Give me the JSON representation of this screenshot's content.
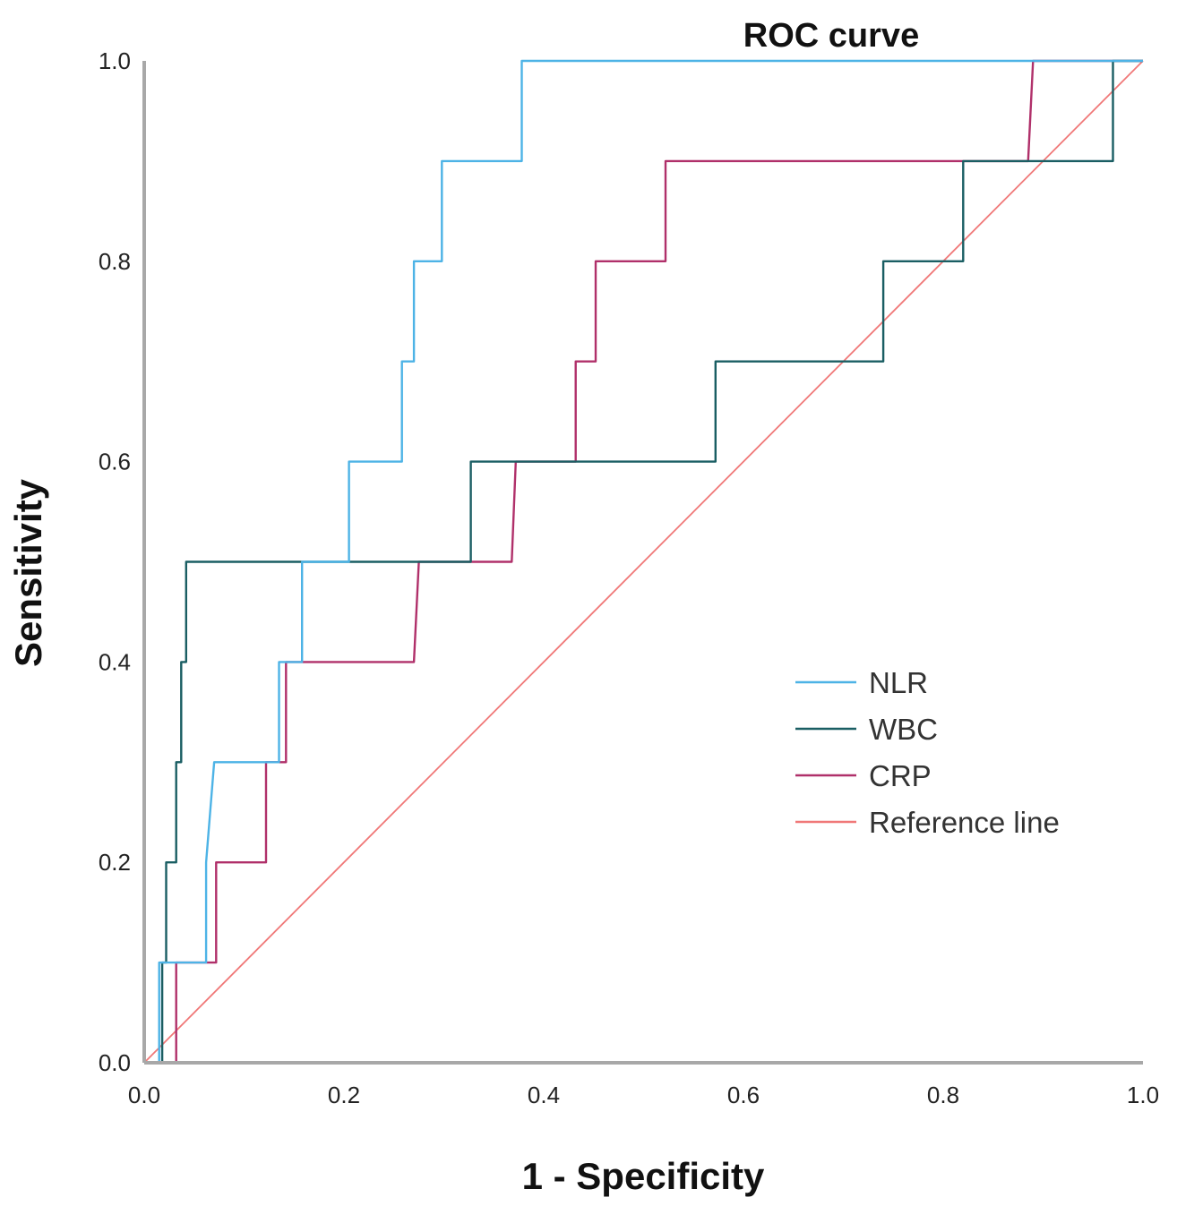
{
  "chart_data": {
    "type": "line",
    "title": "ROC curve",
    "xlabel": "1 - Specificity",
    "ylabel": "Sensitivity",
    "xlim": [
      0,
      1
    ],
    "ylim": [
      0,
      1
    ],
    "xticks": [
      "0.0",
      "0.2",
      "0.4",
      "0.6",
      "0.8",
      "1.0"
    ],
    "yticks": [
      "0.0",
      "0.2",
      "0.4",
      "0.6",
      "0.8",
      "1.0"
    ],
    "legend_position": "right-middle",
    "series": [
      {
        "name": "NLR",
        "color": "#4db3e6",
        "points": [
          [
            0,
            0
          ],
          [
            0.015,
            0
          ],
          [
            0.015,
            0.1
          ],
          [
            0.062,
            0.1
          ],
          [
            0.062,
            0.2
          ],
          [
            0.07,
            0.3
          ],
          [
            0.135,
            0.3
          ],
          [
            0.135,
            0.4
          ],
          [
            0.158,
            0.4
          ],
          [
            0.158,
            0.5
          ],
          [
            0.205,
            0.5
          ],
          [
            0.205,
            0.6
          ],
          [
            0.258,
            0.6
          ],
          [
            0.258,
            0.7
          ],
          [
            0.27,
            0.7
          ],
          [
            0.27,
            0.8
          ],
          [
            0.298,
            0.8
          ],
          [
            0.298,
            0.9
          ],
          [
            0.378,
            0.9
          ],
          [
            0.378,
            1.0
          ],
          [
            1.0,
            1.0
          ]
        ]
      },
      {
        "name": "WBC",
        "color": "#1a5e63",
        "points": [
          [
            0,
            0
          ],
          [
            0.018,
            0
          ],
          [
            0.018,
            0.1
          ],
          [
            0.022,
            0.1
          ],
          [
            0.022,
            0.2
          ],
          [
            0.032,
            0.2
          ],
          [
            0.032,
            0.3
          ],
          [
            0.037,
            0.3
          ],
          [
            0.037,
            0.4
          ],
          [
            0.042,
            0.4
          ],
          [
            0.042,
            0.5
          ],
          [
            0.327,
            0.5
          ],
          [
            0.327,
            0.6
          ],
          [
            0.572,
            0.6
          ],
          [
            0.572,
            0.7
          ],
          [
            0.74,
            0.7
          ],
          [
            0.74,
            0.8
          ],
          [
            0.82,
            0.8
          ],
          [
            0.82,
            0.9
          ],
          [
            0.97,
            0.9
          ],
          [
            0.97,
            1.0
          ],
          [
            1.0,
            1.0
          ]
        ]
      },
      {
        "name": "CRP",
        "color": "#b0306a",
        "points": [
          [
            0,
            0
          ],
          [
            0.032,
            0
          ],
          [
            0.032,
            0.1
          ],
          [
            0.072,
            0.1
          ],
          [
            0.072,
            0.2
          ],
          [
            0.122,
            0.2
          ],
          [
            0.122,
            0.3
          ],
          [
            0.142,
            0.3
          ],
          [
            0.142,
            0.4
          ],
          [
            0.27,
            0.4
          ],
          [
            0.275,
            0.5
          ],
          [
            0.368,
            0.5
          ],
          [
            0.372,
            0.6
          ],
          [
            0.432,
            0.6
          ],
          [
            0.432,
            0.7
          ],
          [
            0.452,
            0.7
          ],
          [
            0.452,
            0.8
          ],
          [
            0.522,
            0.8
          ],
          [
            0.522,
            0.9
          ],
          [
            0.885,
            0.9
          ],
          [
            0.89,
            1.0
          ],
          [
            1.0,
            1.0
          ]
        ]
      },
      {
        "name": "Reference line",
        "color": "#f07878",
        "points": [
          [
            0,
            0
          ],
          [
            1,
            1
          ]
        ]
      }
    ]
  }
}
